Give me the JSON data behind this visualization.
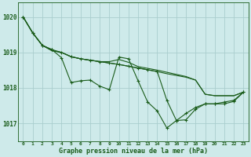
{
  "title": "Graphe pression niveau de la mer (hPa)",
  "bg_color": "#ceeaea",
  "grid_color": "#aacece",
  "line_color": "#1a5c1a",
  "x_labels": [
    "0",
    "1",
    "2",
    "3",
    "4",
    "5",
    "6",
    "7",
    "8",
    "9",
    "10",
    "11",
    "12",
    "13",
    "14",
    "15",
    "16",
    "17",
    "18",
    "19",
    "20",
    "21",
    "22",
    "23"
  ],
  "ylim": [
    1016.5,
    1020.4
  ],
  "yticks": [
    1017,
    1018,
    1019,
    1020
  ],
  "s1": [
    1020.0,
    1019.55,
    1019.2,
    1019.05,
    1019.0,
    1018.88,
    1018.82,
    1018.78,
    1018.74,
    1018.7,
    1018.66,
    1018.61,
    1018.56,
    1018.51,
    1018.46,
    1018.4,
    1018.35,
    1018.3,
    1018.22,
    1017.82,
    1017.78,
    1017.78,
    1017.78,
    1017.88
  ],
  "s2": [
    1020.0,
    1019.55,
    1019.2,
    1019.05,
    1019.0,
    1018.88,
    1018.82,
    1018.78,
    1018.74,
    1018.74,
    1018.8,
    1018.72,
    1018.6,
    1018.55,
    1018.5,
    1018.44,
    1018.38,
    1018.32,
    1018.22,
    1017.82,
    1017.78,
    1017.78,
    1017.78,
    1017.88
  ],
  "s3": [
    1020.0,
    1019.55,
    1019.2,
    1019.08,
    1018.85,
    1018.15,
    1018.2,
    1018.22,
    1018.05,
    1017.95,
    1018.87,
    1018.82,
    1018.2,
    1017.6,
    1017.35,
    1016.87,
    1017.08,
    1017.1,
    1017.4,
    1017.55,
    1017.55,
    1017.55,
    1017.62,
    1017.88
  ],
  "s4": [
    1020.0,
    1019.55,
    1019.2,
    1019.08,
    1019.0,
    1018.88,
    1018.82,
    1018.78,
    1018.74,
    1018.7,
    1018.66,
    1018.61,
    1018.56,
    1018.51,
    1018.46,
    1017.65,
    1017.08,
    1017.28,
    1017.45,
    1017.55,
    1017.55,
    1017.6,
    1017.65,
    1017.88
  ]
}
